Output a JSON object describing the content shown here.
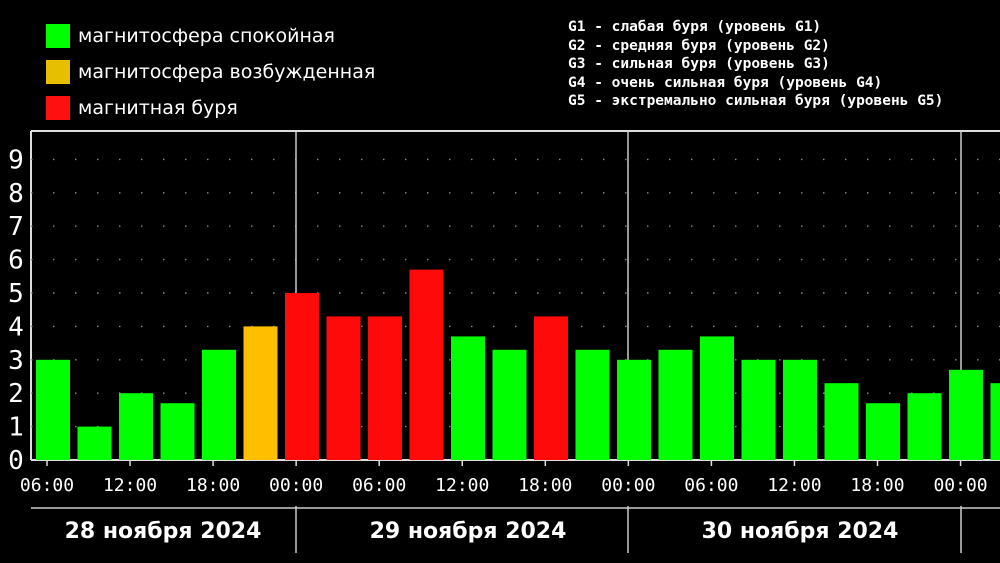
{
  "legend": {
    "items": [
      {
        "label": "магнитосфера спокойная",
        "color": "#00ff00"
      },
      {
        "label": "магнитосфера возбужденная",
        "color": "#e6c000"
      },
      {
        "label": "магнитная буря",
        "color": "#ff1010"
      }
    ]
  },
  "storm_levels": [
    "G1 - слабая буря (уровень G1)",
    "G2 - средняя буря (уровень G2)",
    "G3 - сильная буря (уровень G3)",
    "G4 - очень сильная буря (уровень G4)",
    "G5 - экстремально сильная буря (уровень G5)"
  ],
  "chart_data": {
    "type": "bar",
    "y_ticks": [
      "0",
      "1",
      "2",
      "3",
      "4",
      "5",
      "6",
      "7",
      "8",
      "9"
    ],
    "ylim": [
      0,
      9
    ],
    "grid": true,
    "x_tick_labels": [
      "06:00",
      "12:00",
      "18:00",
      "00:00",
      "06:00",
      "12:00",
      "18:00",
      "00:00",
      "06:00",
      "12:00",
      "18:00",
      "00:00"
    ],
    "day_labels": [
      "28 ноября 2024",
      "29 ноября 2024",
      "30 ноября 2024"
    ],
    "colors": {
      "quiet": "#00ff00",
      "excited": "#ffbf00",
      "storm": "#ff0a0a"
    },
    "bars": [
      {
        "value": 3.0,
        "status": "quiet"
      },
      {
        "value": 1.0,
        "status": "quiet"
      },
      {
        "value": 2.0,
        "status": "quiet"
      },
      {
        "value": 1.7,
        "status": "quiet"
      },
      {
        "value": 3.3,
        "status": "quiet"
      },
      {
        "value": 4.0,
        "status": "excited"
      },
      {
        "value": 5.0,
        "status": "storm"
      },
      {
        "value": 4.3,
        "status": "storm"
      },
      {
        "value": 4.3,
        "status": "storm"
      },
      {
        "value": 5.7,
        "status": "storm"
      },
      {
        "value": 3.7,
        "status": "quiet"
      },
      {
        "value": 3.3,
        "status": "quiet"
      },
      {
        "value": 4.3,
        "status": "storm"
      },
      {
        "value": 3.3,
        "status": "quiet"
      },
      {
        "value": 3.0,
        "status": "quiet"
      },
      {
        "value": 3.3,
        "status": "quiet"
      },
      {
        "value": 3.7,
        "status": "quiet"
      },
      {
        "value": 3.0,
        "status": "quiet"
      },
      {
        "value": 3.0,
        "status": "quiet"
      },
      {
        "value": 2.3,
        "status": "quiet"
      },
      {
        "value": 1.7,
        "status": "quiet"
      },
      {
        "value": 2.0,
        "status": "quiet"
      },
      {
        "value": 2.7,
        "status": "quiet"
      },
      {
        "value": 2.3,
        "status": "quiet"
      }
    ]
  }
}
